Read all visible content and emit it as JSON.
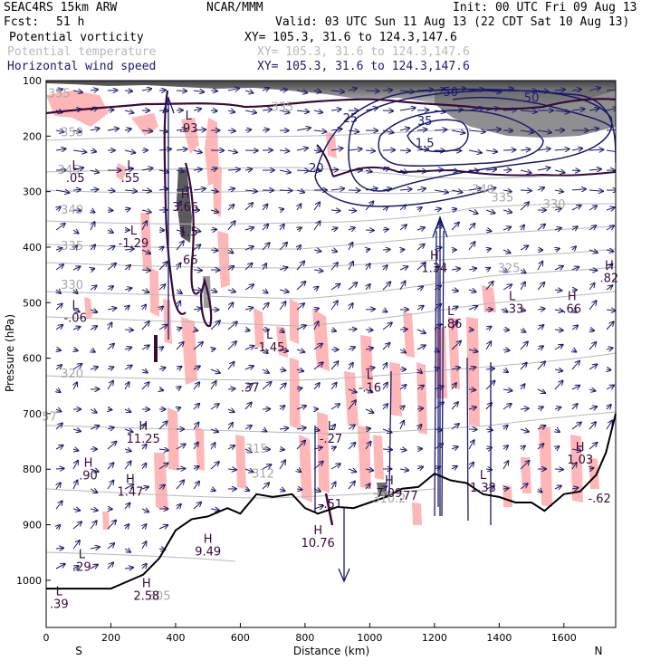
{
  "header": {
    "model": "SEAC4RS 15km ARW",
    "org": "NCAR/MMM",
    "init": "Init: 00 UTC Fri 09 Aug 13",
    "fcst_label": "Fcst:",
    "fcst_value": "51 h",
    "valid": "Valid: 03 UTC Sun 11 Aug 13 (22 CDT Sat 10 Aug 13)",
    "fields": [
      {
        "name": "Potential vorticity",
        "xy": "XY= 105.3, 31.6 to 124.3,147.6",
        "color": "#3a0a3a"
      },
      {
        "name": "Potential temperature",
        "xy": "XY= 105.3, 31.6 to 124.3,147.6",
        "color": "#b8b8b8"
      },
      {
        "name": "Horizontal wind speed",
        "xy": "XY= 105.3, 31.6 to 124.3,147.6",
        "color": "#191970"
      }
    ]
  },
  "chart_data": {
    "type": "cross-section",
    "xlabel": "Distance (km)",
    "ylabel": "Pressure (hPa)",
    "xlim": [
      0,
      1760
    ],
    "ylim": [
      1085,
      100
    ],
    "x_ticks": [
      0,
      200,
      400,
      600,
      800,
      1000,
      1200,
      1400,
      1600
    ],
    "y_ticks": [
      100,
      200,
      300,
      400,
      500,
      600,
      700,
      800,
      900,
      1000
    ],
    "x_end_labels": {
      "left": "S",
      "right": "N"
    },
    "terrain_hpa": [
      [
        0,
        1015
      ],
      [
        200,
        1015
      ],
      [
        300,
        990
      ],
      [
        350,
        960
      ],
      [
        400,
        910
      ],
      [
        450,
        890
      ],
      [
        500,
        885
      ],
      [
        560,
        870
      ],
      [
        600,
        880
      ],
      [
        650,
        845
      ],
      [
        700,
        850
      ],
      [
        760,
        845
      ],
      [
        800,
        870
      ],
      [
        840,
        880
      ],
      [
        900,
        868
      ],
      [
        950,
        870
      ],
      [
        1000,
        860
      ],
      [
        1050,
        850
      ],
      [
        1100,
        835
      ],
      [
        1150,
        832
      ],
      [
        1200,
        808
      ],
      [
        1250,
        820
      ],
      [
        1300,
        825
      ],
      [
        1350,
        845
      ],
      [
        1400,
        850
      ],
      [
        1450,
        860
      ],
      [
        1500,
        860
      ],
      [
        1540,
        875
      ],
      [
        1600,
        845
      ],
      [
        1650,
        840
      ],
      [
        1700,
        810
      ],
      [
        1730,
        770
      ],
      [
        1760,
        700
      ]
    ],
    "theta_labels": [
      {
        "x": 40,
        "p": 130,
        "t": "355"
      },
      {
        "x": 80,
        "p": 200,
        "t": "350"
      },
      {
        "x": 70,
        "p": 268,
        "t": "345"
      },
      {
        "x": 80,
        "p": 340,
        "t": "340"
      },
      {
        "x": 80,
        "p": 405,
        "t": "335"
      },
      {
        "x": 80,
        "p": 475,
        "t": "330"
      },
      {
        "x": 80,
        "p": 635,
        "t": "320"
      },
      {
        "x": 350,
        "p": 1035,
        "t": "305"
      },
      {
        "x": 730,
        "p": 155,
        "t": "335"
      },
      {
        "x": 1410,
        "p": 318,
        "t": "335"
      },
      {
        "x": 1350,
        "p": 303,
        "t": "340"
      },
      {
        "x": 1570,
        "p": 330,
        "t": "330"
      },
      {
        "x": 1430,
        "p": 445,
        "t": "325"
      },
      {
        "x": 650,
        "p": 770,
        "t": "315"
      },
      {
        "x": 670,
        "p": 815,
        "t": "312"
      },
      {
        "x": 1060,
        "p": 860,
        "t": "310.2"
      },
      {
        "x": 10,
        "p": 712,
        "t": "57"
      }
    ],
    "speed_labels": [
      {
        "x": 1250,
        "p": 128,
        "t": "50"
      },
      {
        "x": 1500,
        "p": 138,
        "t": "50"
      },
      {
        "x": 1170,
        "p": 180,
        "t": "35"
      },
      {
        "x": 940,
        "p": 175,
        "t": "25"
      },
      {
        "x": 835,
        "p": 265,
        "t": "20"
      },
      {
        "x": 1170,
        "p": 220,
        "t": "1.5"
      }
    ],
    "extrema": [
      {
        "x": 440,
        "p": 193,
        "k": "L",
        "v": ".93"
      },
      {
        "x": 90,
        "p": 283,
        "k": "L",
        "v": ".05"
      },
      {
        "x": 260,
        "p": 283,
        "k": "L",
        "v": ".55"
      },
      {
        "x": 430,
        "p": 335,
        "k": "H",
        "v": "3.66"
      },
      {
        "x": 440,
        "p": 380,
        "k": "",
        "v": "1.5"
      },
      {
        "x": 270,
        "p": 400,
        "k": "L",
        "v": "-1.29"
      },
      {
        "x": 440,
        "p": 430,
        "k": "",
        "v": ".66"
      },
      {
        "x": 90,
        "p": 535,
        "k": "L",
        "v": "-.06"
      },
      {
        "x": 690,
        "p": 588,
        "k": "L",
        "v": "-1.45"
      },
      {
        "x": 630,
        "p": 660,
        "k": "",
        "v": ".37"
      },
      {
        "x": 1000,
        "p": 660,
        "k": "L",
        "v": "-.16"
      },
      {
        "x": 880,
        "p": 752,
        "k": "L",
        "v": "-.27"
      },
      {
        "x": 300,
        "p": 752,
        "k": "H",
        "v": "11.25"
      },
      {
        "x": 130,
        "p": 818,
        "k": "H",
        "v": ".90"
      },
      {
        "x": 260,
        "p": 848,
        "k": "H",
        "v": "1.47"
      },
      {
        "x": 1200,
        "p": 445,
        "k": "H",
        "v": "1.34"
      },
      {
        "x": 1250,
        "p": 545,
        "k": "L",
        "v": "-.86"
      },
      {
        "x": 1440,
        "p": 518,
        "k": "L",
        "v": "-.33"
      },
      {
        "x": 1625,
        "p": 518,
        "k": "H",
        "v": ".66"
      },
      {
        "x": 1740,
        "p": 463,
        "k": "H",
        "v": ".82"
      },
      {
        "x": 1650,
        "p": 790,
        "k": "H",
        "v": "1.03"
      },
      {
        "x": 1350,
        "p": 840,
        "k": "L",
        "v": "1.33"
      },
      {
        "x": 1710,
        "p": 860,
        "k": "",
        "v": "-.62"
      },
      {
        "x": 1060,
        "p": 850,
        "k": "H",
        "v": "7.09"
      },
      {
        "x": 1120,
        "p": 855,
        "k": "",
        "v": ".77"
      },
      {
        "x": 880,
        "p": 870,
        "k": "",
        "v": "-.51"
      },
      {
        "x": 840,
        "p": 940,
        "k": "H",
        "v": "10.76"
      },
      {
        "x": 500,
        "p": 955,
        "k": "H",
        "v": "9.49"
      },
      {
        "x": 110,
        "p": 983,
        "k": "L",
        "v": ".29"
      },
      {
        "x": 310,
        "p": 1035,
        "k": "H",
        "v": "2.58"
      },
      {
        "x": 40,
        "p": 1050,
        "k": "L",
        "v": ".39"
      }
    ],
    "colors": {
      "pv_contour": "#3a0a3a",
      "theta_contour": "#b8b8b8",
      "wind_vector": "#191970",
      "pv_negative_fill": "#ffb6b6",
      "terrain_line": "#000000",
      "pv_shading_dark": "#404040"
    }
  }
}
